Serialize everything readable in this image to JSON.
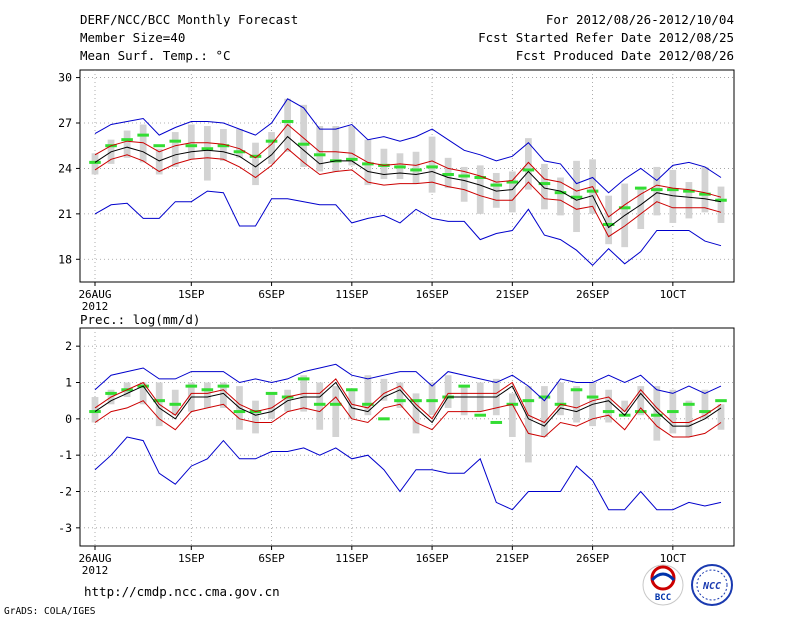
{
  "header": {
    "left": [
      "DERF/NCC/BCC Monthly Forecast",
      "Member Size=40",
      "Mean Surf. Temp.: °C"
    ],
    "right": [
      "For 2012/08/26-2012/10/04",
      "Fcst Started Refer Date 2012/08/25",
      "Fcst Produced Date 2012/08/26"
    ]
  },
  "footer": {
    "url": "http://cmdp.ncc.cma.gov.cn",
    "credit": "GrADS: COLA/IGES",
    "logo_left_text": "BCC",
    "logo_right_text": "NCC"
  },
  "colors": {
    "box": "#d3d3d3",
    "mean": "#000000",
    "spread": "#cc0000",
    "envelope": "#0000cc",
    "clim": "#33dd33",
    "grid": "#999999"
  },
  "chart_data": [
    {
      "type": "line",
      "title": "Mean Surf. Temp.: °C",
      "ylim": [
        16.5,
        30.5
      ],
      "yticks": [
        18,
        21,
        24,
        27,
        30
      ],
      "day_range": [
        0,
        39
      ],
      "xticks": [
        {
          "day": 0,
          "label": "26AUG",
          "sub": "2012"
        },
        {
          "day": 6,
          "label": "1SEP"
        },
        {
          "day": 11,
          "label": "6SEP"
        },
        {
          "day": 16,
          "label": "11SEP"
        },
        {
          "day": 21,
          "label": "16SEP"
        },
        {
          "day": 26,
          "label": "21SEP"
        },
        {
          "day": 31,
          "label": "26SEP"
        },
        {
          "day": 36,
          "label": "1OCT"
        }
      ],
      "box_low": [
        23.6,
        24.3,
        24.7,
        24.4,
        23.6,
        24.1,
        24.6,
        23.2,
        24.5,
        24.7,
        22.9,
        24.3,
        25.1,
        24.1,
        23.8,
        23.8,
        24.2,
        22.9,
        23.3,
        23.3,
        23.0,
        22.4,
        22.7,
        21.8,
        21.0,
        21.4,
        21.1,
        22.6,
        21.3,
        20.9,
        19.8,
        21.0,
        19.0,
        18.8,
        20.0,
        20.9,
        20.4,
        20.7,
        21.1,
        20.4
      ],
      "box_high": [
        25.0,
        25.9,
        26.5,
        26.9,
        25.3,
        26.4,
        26.9,
        26.8,
        26.6,
        26.6,
        25.7,
        26.4,
        28.6,
        28.2,
        26.8,
        26.8,
        26.8,
        25.9,
        25.3,
        25.0,
        25.1,
        26.1,
        24.7,
        24.1,
        24.2,
        23.7,
        23.8,
        26.0,
        24.3,
        23.4,
        24.5,
        24.6,
        22.2,
        23.0,
        22.7,
        24.1,
        23.9,
        23.1,
        24.1,
        22.8
      ],
      "mean": [
        24.4,
        25.1,
        25.4,
        25.1,
        24.5,
        24.9,
        25.1,
        25.2,
        25.1,
        24.8,
        24.1,
        24.9,
        26.1,
        25.2,
        24.3,
        24.5,
        24.5,
        23.8,
        23.6,
        23.7,
        23.6,
        23.8,
        23.4,
        23.2,
        22.9,
        22.5,
        22.6,
        23.8,
        22.7,
        22.5,
        21.9,
        22.2,
        20.1,
        20.9,
        21.6,
        22.4,
        22.2,
        22.1,
        22.0,
        21.8
      ],
      "upper": [
        24.9,
        25.5,
        25.8,
        25.7,
        25.1,
        25.5,
        25.7,
        25.7,
        25.6,
        25.3,
        24.7,
        25.6,
        26.9,
        26.0,
        25.1,
        25.1,
        25.0,
        24.4,
        24.2,
        24.3,
        24.2,
        24.5,
        24.0,
        23.8,
        23.5,
        23.1,
        23.2,
        24.4,
        23.3,
        23.1,
        22.5,
        22.8,
        20.8,
        21.6,
        22.3,
        22.9,
        22.7,
        22.6,
        22.4,
        22.1
      ],
      "lower": [
        23.9,
        24.6,
        24.9,
        24.5,
        23.8,
        24.3,
        24.6,
        24.7,
        24.6,
        24.1,
        23.4,
        24.2,
        25.3,
        24.4,
        23.6,
        23.8,
        23.9,
        23.1,
        22.9,
        23.0,
        23.0,
        23.1,
        22.8,
        22.6,
        22.2,
        21.9,
        21.9,
        23.1,
        22.0,
        21.9,
        21.3,
        21.5,
        19.5,
        20.2,
        21.0,
        21.8,
        21.4,
        21.4,
        21.4,
        21.1
      ],
      "max": [
        26.3,
        26.9,
        27.1,
        27.3,
        26.2,
        26.7,
        27.1,
        27.1,
        27.0,
        26.6,
        26.2,
        27.0,
        28.6,
        28.0,
        26.6,
        26.6,
        26.9,
        25.9,
        26.1,
        25.8,
        26.1,
        26.6,
        25.9,
        25.2,
        24.9,
        24.5,
        24.8,
        25.7,
        24.5,
        24.3,
        23.0,
        23.4,
        22.4,
        23.3,
        24.0,
        23.2,
        24.2,
        24.4,
        24.1,
        23.4
      ],
      "min": [
        21.0,
        21.6,
        21.7,
        20.7,
        20.7,
        21.8,
        21.8,
        22.5,
        22.4,
        20.2,
        20.2,
        22.0,
        22.0,
        21.8,
        21.6,
        21.6,
        20.4,
        20.7,
        20.9,
        20.4,
        21.3,
        20.7,
        20.5,
        20.5,
        19.3,
        19.7,
        19.9,
        21.3,
        19.6,
        19.3,
        18.6,
        17.6,
        18.7,
        17.7,
        18.5,
        19.9,
        19.9,
        19.9,
        19.2,
        18.9
      ],
      "clim": [
        24.4,
        25.5,
        25.9,
        26.2,
        25.5,
        25.8,
        25.5,
        25.3,
        25.5,
        25.1,
        24.8,
        25.8,
        27.1,
        25.6,
        24.9,
        24.5,
        24.6,
        24.3,
        24.2,
        24.1,
        23.9,
        24.1,
        23.6,
        23.5,
        23.4,
        22.9,
        23.1,
        23.9,
        23.0,
        22.4,
        22.1,
        22.5,
        20.3,
        21.4,
        22.7,
        22.6,
        22.6,
        22.5,
        22.3,
        21.9
      ]
    },
    {
      "type": "line",
      "title": "Prec.: log(mm/d)",
      "ylim": [
        -3.5,
        2.5
      ],
      "yticks": [
        -3,
        -2,
        -1,
        0,
        1,
        2
      ],
      "day_range": [
        0,
        39
      ],
      "xticks": [
        {
          "day": 0,
          "label": "26AUG",
          "sub": "2012"
        },
        {
          "day": 6,
          "label": "1SEP"
        },
        {
          "day": 11,
          "label": "6SEP"
        },
        {
          "day": 16,
          "label": "11SEP"
        },
        {
          "day": 21,
          "label": "16SEP"
        },
        {
          "day": 26,
          "label": "21SEP"
        },
        {
          "day": 31,
          "label": "26SEP"
        },
        {
          "day": 36,
          "label": "1OCT"
        }
      ],
      "box_low": [
        -0.1,
        0.4,
        0.6,
        0.4,
        -0.2,
        0.1,
        0.2,
        0.3,
        0.3,
        -0.3,
        -0.4,
        0.0,
        0.2,
        0.2,
        -0.3,
        -0.5,
        0.0,
        0.1,
        0.5,
        0.3,
        -0.4,
        0.1,
        0.3,
        0.1,
        0.2,
        0.1,
        -0.5,
        -1.2,
        -0.5,
        0.1,
        -0.1,
        -0.2,
        -0.1,
        0.2,
        0.1,
        -0.6,
        -0.4,
        -0.5,
        0.0,
        -0.3
      ],
      "box_high": [
        0.6,
        0.8,
        1.0,
        1.0,
        1.0,
        0.8,
        1.0,
        1.0,
        1.0,
        0.9,
        0.5,
        0.7,
        0.8,
        1.2,
        1.0,
        0.9,
        0.8,
        1.2,
        1.1,
        1.0,
        0.7,
        1.0,
        1.2,
        0.9,
        1.0,
        1.1,
        0.7,
        0.9,
        0.9,
        1.0,
        0.9,
        1.0,
        0.8,
        0.5,
        0.9,
        0.9,
        0.8,
        0.5,
        0.8,
        0.4
      ],
      "mean": [
        0.2,
        0.5,
        0.7,
        0.9,
        0.3,
        0.0,
        0.6,
        0.6,
        0.7,
        0.3,
        0.1,
        0.2,
        0.5,
        0.6,
        0.6,
        1.0,
        0.3,
        0.2,
        0.6,
        0.8,
        0.3,
        -0.1,
        0.6,
        0.6,
        0.6,
        0.6,
        0.9,
        0.0,
        -0.2,
        0.3,
        0.2,
        0.4,
        0.5,
        0.1,
        0.7,
        0.2,
        -0.2,
        -0.2,
        0.0,
        0.3
      ],
      "upper": [
        0.3,
        0.6,
        0.8,
        1.0,
        0.4,
        0.1,
        0.7,
        0.7,
        0.8,
        0.4,
        0.2,
        0.3,
        0.6,
        0.7,
        0.7,
        1.1,
        0.4,
        0.3,
        0.7,
        0.9,
        0.4,
        0.0,
        0.7,
        0.7,
        0.7,
        0.7,
        1.0,
        0.1,
        -0.1,
        0.4,
        0.3,
        0.5,
        0.6,
        0.2,
        0.8,
        0.3,
        -0.1,
        -0.1,
        0.1,
        0.4
      ],
      "lower": [
        -0.1,
        0.2,
        0.3,
        0.5,
        0.0,
        -0.3,
        0.2,
        0.3,
        0.4,
        0.0,
        -0.1,
        -0.1,
        0.2,
        0.3,
        0.2,
        0.6,
        0.0,
        -0.1,
        0.3,
        0.4,
        -0.1,
        -0.3,
        0.2,
        0.2,
        0.2,
        0.3,
        0.4,
        -0.4,
        -0.5,
        -0.1,
        -0.2,
        0.0,
        0.1,
        -0.3,
        0.3,
        -0.2,
        -0.5,
        -0.5,
        -0.4,
        -0.1
      ],
      "max": [
        0.8,
        1.2,
        1.3,
        1.4,
        1.1,
        1.1,
        1.3,
        1.3,
        1.3,
        1.0,
        1.1,
        1.0,
        1.1,
        1.3,
        1.4,
        1.5,
        1.2,
        1.1,
        1.2,
        1.3,
        1.3,
        0.9,
        1.3,
        1.2,
        1.1,
        1.0,
        1.2,
        0.9,
        0.5,
        1.1,
        1.0,
        1.0,
        1.2,
        1.0,
        1.2,
        0.8,
        0.7,
        0.9,
        0.7,
        0.9
      ],
      "min": [
        -1.4,
        -1.0,
        -0.5,
        -0.6,
        -1.5,
        -1.8,
        -1.3,
        -1.1,
        -0.6,
        -1.1,
        -1.1,
        -0.9,
        -0.9,
        -0.8,
        -1.0,
        -0.8,
        -1.1,
        -1.0,
        -1.4,
        -2.0,
        -1.4,
        -1.4,
        -1.5,
        -1.5,
        -1.1,
        -2.3,
        -2.5,
        -2.0,
        -2.0,
        -2.0,
        -1.3,
        -1.7,
        -2.5,
        -2.5,
        -2.0,
        -2.5,
        -2.5,
        -2.3,
        -2.4,
        -2.3
      ],
      "clim": [
        0.2,
        0.7,
        0.8,
        0.9,
        0.5,
        0.4,
        0.9,
        0.8,
        0.9,
        0.2,
        0.2,
        0.7,
        0.6,
        1.1,
        0.4,
        0.4,
        0.8,
        0.4,
        -0.0,
        0.5,
        0.5,
        0.5,
        0.6,
        0.9,
        0.1,
        -0.1,
        0.4,
        0.5,
        0.6,
        0.4,
        0.8,
        0.6,
        0.2,
        0.1,
        0.2,
        0.1,
        0.2,
        0.4,
        0.2,
        0.5
      ]
    }
  ]
}
